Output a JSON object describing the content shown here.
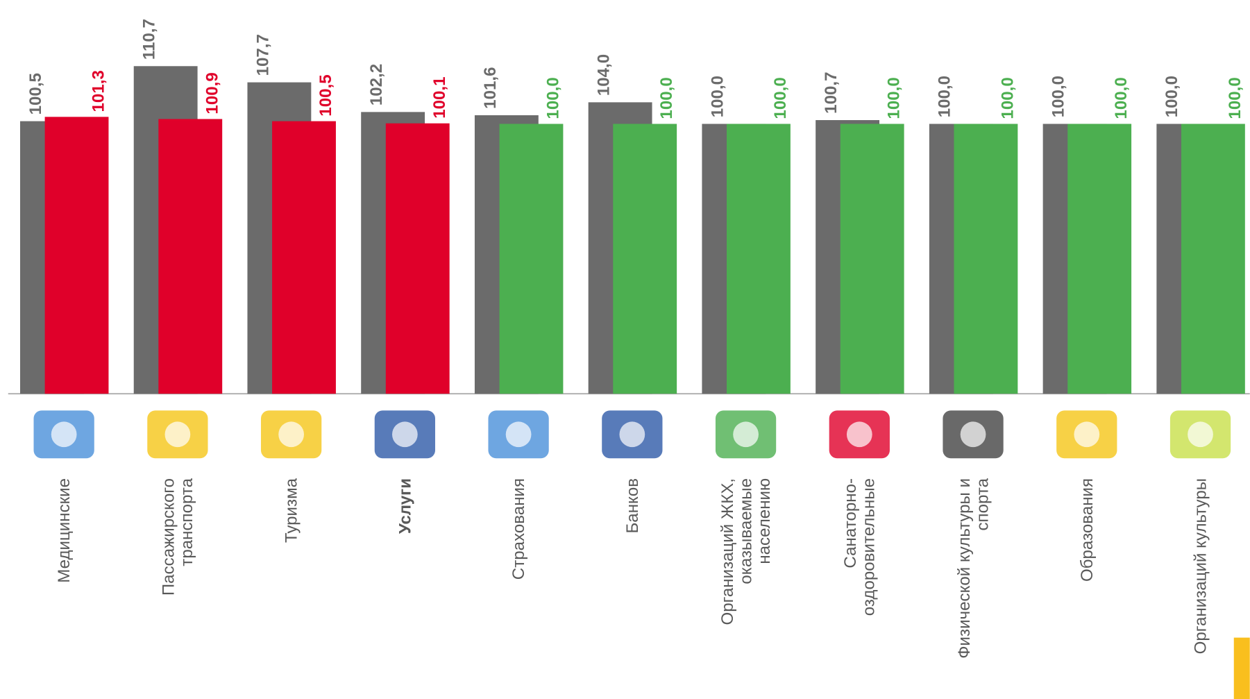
{
  "chart_data": {
    "type": "bar",
    "categories": [
      [
        "Медицинские"
      ],
      [
        "Пассажирского",
        "транспорта"
      ],
      [
        "Туризма"
      ],
      [
        "Услуги"
      ],
      [
        "Страхования"
      ],
      [
        "Банков"
      ],
      [
        "Организаций ЖКХ,",
        "оказываемые",
        "населению"
      ],
      [
        "Санаторно-",
        "оздоровительные"
      ],
      [
        "Физической культуры и",
        "спорта"
      ],
      [
        "Образования"
      ],
      [
        "Организаций культуры"
      ]
    ],
    "bold_category": 3,
    "series": [
      {
        "color": "#6b6b6b",
        "values": [
          100.5,
          110.7,
          107.7,
          102.2,
          101.6,
          104.0,
          100.0,
          100.7,
          100.0,
          100.0,
          100.0
        ],
        "value_labels": [
          "100,5",
          "110,7",
          "107,7",
          "102,2",
          "101,6",
          "104,0",
          "100,0",
          "100,7",
          "100,0",
          "100,0",
          "100,0"
        ]
      },
      {
        "colors": [
          "#e0002a",
          "#e0002a",
          "#e0002a",
          "#e0002a",
          "#4caf50",
          "#4caf50",
          "#4caf50",
          "#4caf50",
          "#4caf50",
          "#4caf50",
          "#4caf50"
        ],
        "values": [
          101.3,
          100.9,
          100.5,
          100.1,
          100.0,
          100.0,
          100.0,
          100.0,
          100.0,
          100.0,
          100.0
        ],
        "value_labels": [
          "101,3",
          "100,9",
          "100,5",
          "100,1",
          "100,0",
          "100,0",
          "100,0",
          "100,0",
          "100,0",
          "100,0",
          "100,0"
        ]
      }
    ],
    "ylim": [
      50,
      120
    ]
  }
}
